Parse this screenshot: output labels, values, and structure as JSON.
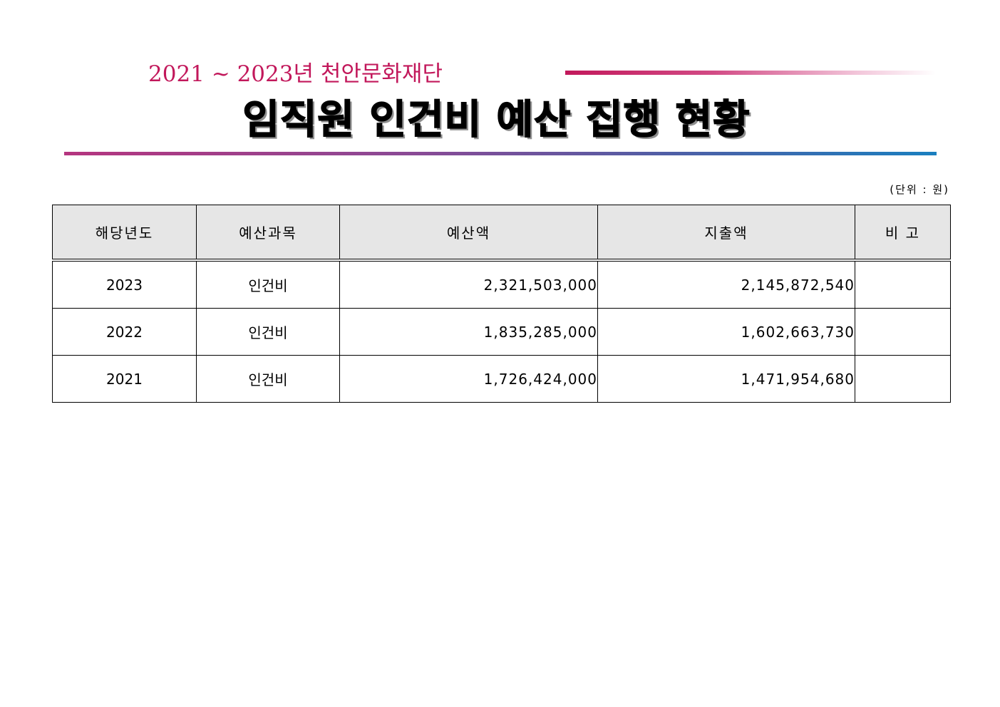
{
  "header": {
    "subtitle": "2021 ~ 2023년 천안문화재단",
    "title": "임직원 인건비 예산 집행 현황"
  },
  "unit_note": "(단위 : 원)",
  "table": {
    "columns": [
      "해당년도",
      "예산과목",
      "예산액",
      "지출액",
      "비 고"
    ],
    "rows": [
      {
        "year": "2023",
        "item": "인건비",
        "budget": "2,321,503,000",
        "spent": "2,145,872,540",
        "note": ""
      },
      {
        "year": "2022",
        "item": "인건비",
        "budget": "1,835,285,000",
        "spent": "1,602,663,730",
        "note": ""
      },
      {
        "year": "2021",
        "item": "인건비",
        "budget": "1,726,424,000",
        "spent": "1,471,954,680",
        "note": ""
      }
    ]
  }
}
